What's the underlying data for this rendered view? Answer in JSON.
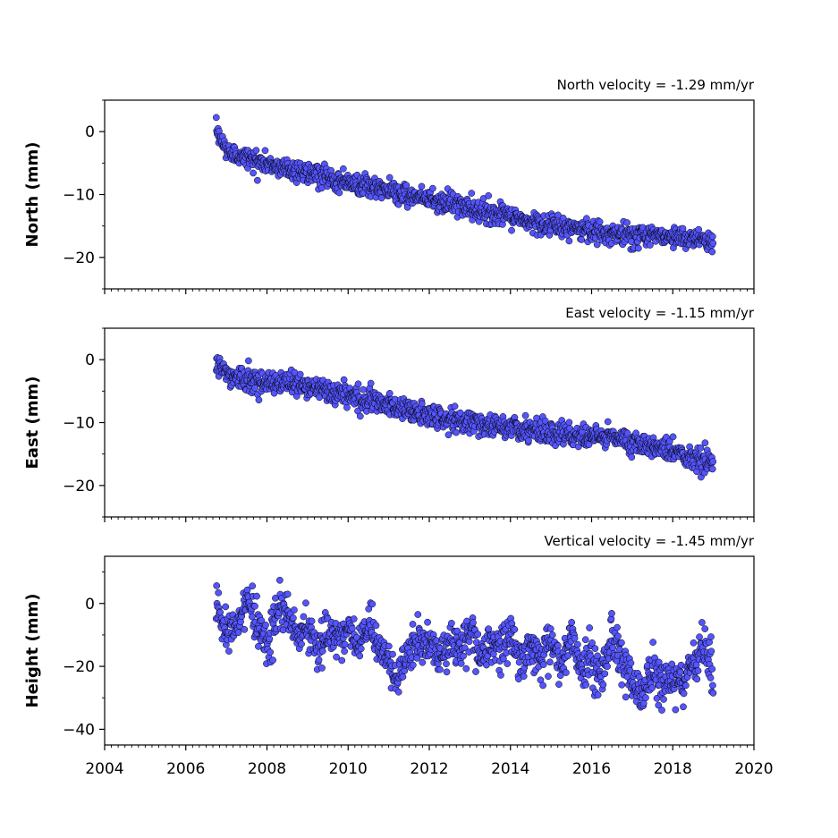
{
  "chart_data": [
    {
      "type": "scatter",
      "title": "North velocity = -1.29 mm/yr",
      "ylabel": "North (mm)",
      "xlim": [
        2004,
        2020
      ],
      "ylim": [
        -25,
        5
      ],
      "yticks": [
        0,
        -10,
        -20
      ],
      "ytick_labels": [
        "0",
        "−10",
        "−20"
      ],
      "xtick_labels_shown": false,
      "series": [
        {
          "marker_color": "#5555ff",
          "edge_color": "#000000",
          "x": [
            2006.75,
            2007.0,
            2007.5,
            2008.0,
            2008.5,
            2009.0,
            2009.5,
            2010.0,
            2010.5,
            2011.0,
            2011.5,
            2012.0,
            2012.5,
            2013.0,
            2013.5,
            2014.0,
            2014.5,
            2015.0,
            2015.5,
            2016.0,
            2016.5,
            2017.0,
            2017.5,
            2018.0,
            2018.5,
            2019.0
          ],
          "y": [
            0.0,
            -3.0,
            -4.2,
            -5.2,
            -5.8,
            -6.6,
            -7.4,
            -8.0,
            -8.8,
            -9.4,
            -10.0,
            -10.6,
            -11.4,
            -12.2,
            -12.8,
            -13.6,
            -14.4,
            -15.0,
            -15.4,
            -15.8,
            -16.2,
            -16.4,
            -16.4,
            -16.6,
            -16.8,
            -17.6
          ]
        }
      ]
    },
    {
      "type": "scatter",
      "title": "East velocity = -1.15 mm/yr",
      "ylabel": "East (mm)",
      "xlim": [
        2004,
        2020
      ],
      "ylim": [
        -25,
        5
      ],
      "yticks": [
        0,
        -10,
        -20
      ],
      "ytick_labels": [
        "0",
        "−10",
        "−20"
      ],
      "xtick_labels_shown": false,
      "series": [
        {
          "marker_color": "#5555ff",
          "edge_color": "#000000",
          "x": [
            2006.75,
            2007.0,
            2007.5,
            2008.0,
            2008.5,
            2009.0,
            2009.5,
            2010.0,
            2010.5,
            2011.0,
            2011.5,
            2012.0,
            2012.5,
            2013.0,
            2013.5,
            2014.0,
            2014.5,
            2015.0,
            2015.5,
            2016.0,
            2016.5,
            2017.0,
            2017.5,
            2018.0,
            2018.5,
            2019.0
          ],
          "y": [
            0.0,
            -2.4,
            -3.2,
            -3.4,
            -3.8,
            -4.2,
            -5.0,
            -5.8,
            -6.4,
            -7.2,
            -8.0,
            -9.0,
            -9.6,
            -10.0,
            -10.6,
            -10.8,
            -11.2,
            -11.6,
            -12.0,
            -12.2,
            -12.4,
            -13.0,
            -13.6,
            -14.6,
            -15.6,
            -16.6
          ]
        }
      ]
    },
    {
      "type": "scatter",
      "title": "Vertical velocity = -1.45 mm/yr",
      "ylabel": "Height (mm)",
      "xlabel": "",
      "xlim": [
        2004,
        2020
      ],
      "ylim": [
        -45,
        15
      ],
      "yticks": [
        0,
        -20,
        -40
      ],
      "ytick_labels": [
        "0",
        "−20",
        "−40"
      ],
      "xticks": [
        2004,
        2006,
        2008,
        2010,
        2012,
        2014,
        2016,
        2018,
        2020
      ],
      "xtick_labels": [
        "2004",
        "2006",
        "2008",
        "2010",
        "2012",
        "2014",
        "2016",
        "2018",
        "2020"
      ],
      "xtick_labels_shown": true,
      "series": [
        {
          "marker_color": "#5555ff",
          "edge_color": "#000000",
          "x": [
            2006.75,
            2007.0,
            2007.25,
            2007.5,
            2007.75,
            2008.0,
            2008.25,
            2008.5,
            2008.75,
            2009.0,
            2009.25,
            2009.5,
            2009.75,
            2010.0,
            2010.25,
            2010.5,
            2010.75,
            2011.0,
            2011.25,
            2011.5,
            2011.75,
            2012.0,
            2012.25,
            2012.5,
            2012.75,
            2013.0,
            2013.25,
            2013.5,
            2013.75,
            2014.0,
            2014.25,
            2014.5,
            2014.75,
            2015.0,
            2015.25,
            2015.5,
            2015.75,
            2016.0,
            2016.25,
            2016.5,
            2016.75,
            2017.0,
            2017.25,
            2017.5,
            2017.75,
            2018.0,
            2018.25,
            2018.5,
            2018.75,
            2019.0
          ],
          "y": [
            -1.0,
            -10.0,
            -8.0,
            2.0,
            -6.0,
            -12.0,
            -4.0,
            -3.0,
            -10.0,
            -7.0,
            -16.0,
            -9.0,
            -10.0,
            -8.0,
            -15.0,
            -7.0,
            -12.0,
            -19.0,
            -24.0,
            -15.0,
            -12.0,
            -13.0,
            -18.0,
            -11.0,
            -16.0,
            -7.0,
            -18.0,
            -12.0,
            -14.0,
            -10.0,
            -19.0,
            -12.0,
            -17.0,
            -12.0,
            -20.0,
            -10.0,
            -22.0,
            -16.0,
            -24.0,
            -10.0,
            -18.0,
            -25.0,
            -30.0,
            -20.0,
            -26.0,
            -24.0,
            -27.0,
            -19.0,
            -14.0,
            -22.0
          ]
        }
      ]
    }
  ]
}
